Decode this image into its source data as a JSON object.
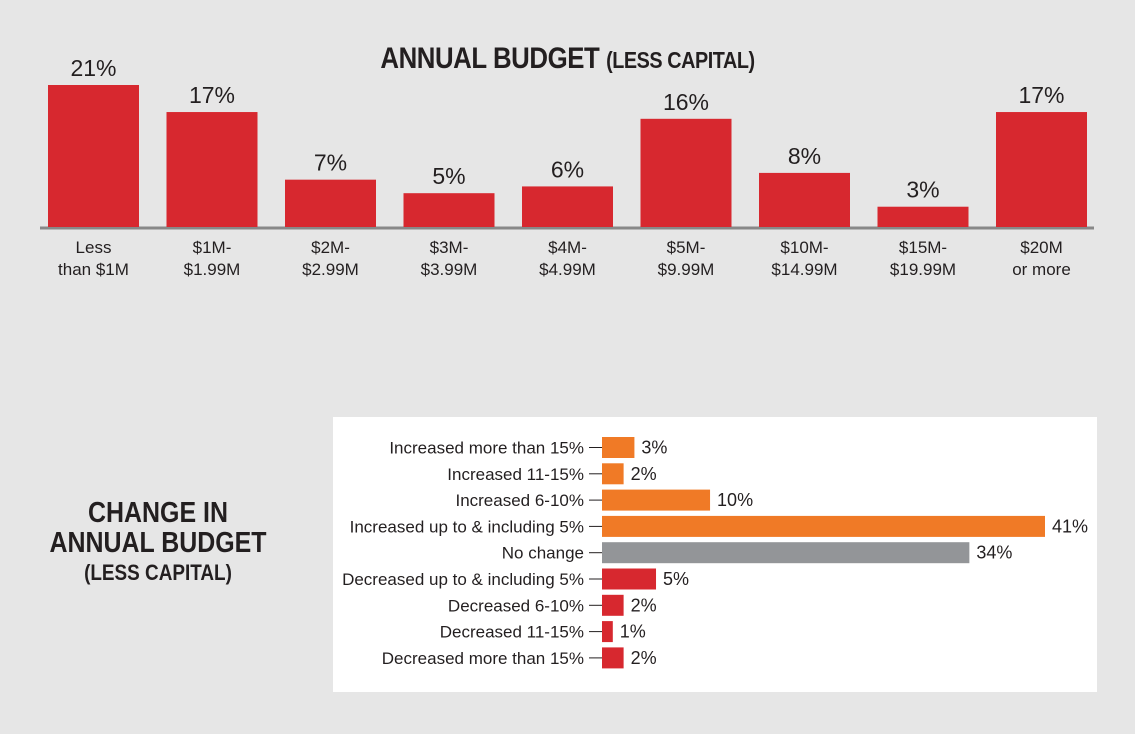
{
  "chart_data": [
    {
      "type": "bar",
      "title": "ANNUAL BUDGET",
      "subtitle": "(LESS CAPITAL)",
      "categories": [
        [
          "Less",
          "than $1M"
        ],
        [
          "$1M-",
          "$1.99M"
        ],
        [
          "$2M-",
          "$2.99M"
        ],
        [
          "$3M-",
          "$3.99M"
        ],
        [
          "$4M-",
          "$4.99M"
        ],
        [
          "$5M-",
          "$9.99M"
        ],
        [
          "$10M-",
          "$14.99M"
        ],
        [
          "$15M-",
          "$19.99M"
        ],
        [
          "$20M",
          "or more"
        ]
      ],
      "values": [
        21,
        17,
        7,
        5,
        6,
        16,
        8,
        3,
        17
      ],
      "value_labels": [
        "21%",
        "17%",
        "7%",
        "5%",
        "6%",
        "16%",
        "8%",
        "3%",
        "17%"
      ],
      "xlabel": "",
      "ylabel": "",
      "ylim": [
        0,
        21
      ],
      "color": "#d7282f",
      "axis_color": "#888888"
    },
    {
      "type": "bar",
      "orientation": "horizontal",
      "title": [
        "CHANGE IN",
        "ANNUAL BUDGET"
      ],
      "subtitle": "(LESS CAPITAL)",
      "categories": [
        "Increased more than 15%",
        "Increased 11-15%",
        "Increased 6-10%",
        "Increased up to & including 5%",
        "No change",
        "Decreased up to & including 5%",
        "Decreased 6-10%",
        "Decreased 11-15%",
        "Decreased more than 15%"
      ],
      "values": [
        3,
        2,
        10,
        41,
        34,
        5,
        2,
        1,
        2
      ],
      "value_labels": [
        "3%",
        "2%",
        "10%",
        "41%",
        "34%",
        "5%",
        "2%",
        "1%",
        "2%"
      ],
      "colors": [
        "#f07a26",
        "#f07a26",
        "#f07a26",
        "#f07a26",
        "#939598",
        "#d7282f",
        "#d7282f",
        "#d7282f",
        "#d7282f"
      ],
      "xlim": [
        0,
        41
      ]
    }
  ]
}
